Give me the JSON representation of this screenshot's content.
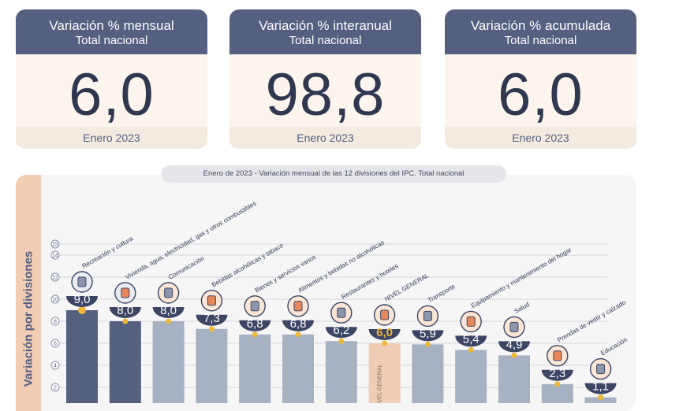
{
  "cards": [
    {
      "title": "Variación % mensual",
      "subtitle": "Total nacional",
      "value": "6,0",
      "period": "Enero 2023"
    },
    {
      "title": "Variación % interanual",
      "subtitle": "Total nacional",
      "value": "98,8",
      "period": "Enero 2023"
    },
    {
      "title": "Variación % acumulada",
      "subtitle": "Total nacional",
      "value": "6,0",
      "period": "Enero 2023"
    }
  ],
  "side_label": "Variación por divisiones",
  "colors": {
    "dark": "#55607f",
    "light": "#a6b1c2",
    "highlight": "#f1cdb5",
    "marker": "#f0b63a",
    "badge": "#3c4564"
  },
  "chart_data": {
    "type": "bar",
    "title": "Enero de 2023 - Variación mensual de las 12 divisiones del IPC. Total nacional",
    "ylabel": "Variación por divisiones",
    "ylim": [
      0,
      15
    ],
    "yticks": [
      "15",
      "14",
      "12",
      "10",
      "8",
      "6",
      "4",
      "2"
    ],
    "ytick_values": [
      15,
      14,
      12,
      10,
      8,
      6,
      4,
      2
    ],
    "grid": true,
    "categories": [
      "Recreación y cultura",
      "Vivienda, agua, electricidad, gas y otros combustibles",
      "Comunicación",
      "Bebidas alcohólicas y tabaco",
      "Bienes y servicios varios",
      "Alimentos y bebidas no alcohólicas",
      "Restaurantes y hoteles",
      "NIVEL GENERAL",
      "Transporte",
      "Equipamiento y mantenimiento del hogar",
      "Salud",
      "Prendas de vestir y calzado",
      "Educación"
    ],
    "values": [
      9.0,
      8.0,
      8.0,
      7.3,
      6.8,
      6.8,
      6.2,
      6.0,
      5.9,
      5.4,
      4.9,
      2.3,
      1.1
    ],
    "value_labels": [
      "9,0",
      "8,0",
      "8,0",
      "7,3",
      "6,8",
      "6,8",
      "6,2",
      "6,0",
      "5,9",
      "5,4",
      "4,9",
      "2,3",
      "1,1"
    ],
    "bar_style": [
      "dark",
      "dark",
      "light",
      "light",
      "light",
      "light",
      "light",
      "highlight",
      "light",
      "light",
      "light",
      "light",
      "light"
    ],
    "bar_text": [
      "",
      "",
      "",
      "",
      "",
      "",
      "",
      "NIVEL GENERAL",
      "",
      "",
      "",
      "",
      ""
    ],
    "icons": [
      "recreation-icon",
      "lightbulb-icon",
      "phone-icon",
      "bottle-icon",
      "scissors-icon",
      "food-icon",
      "cutlery-icon",
      "basket-icon",
      "car-icon",
      "washer-icon",
      "health-cross-icon",
      "clothes-icon",
      "notebook-icon"
    ]
  }
}
